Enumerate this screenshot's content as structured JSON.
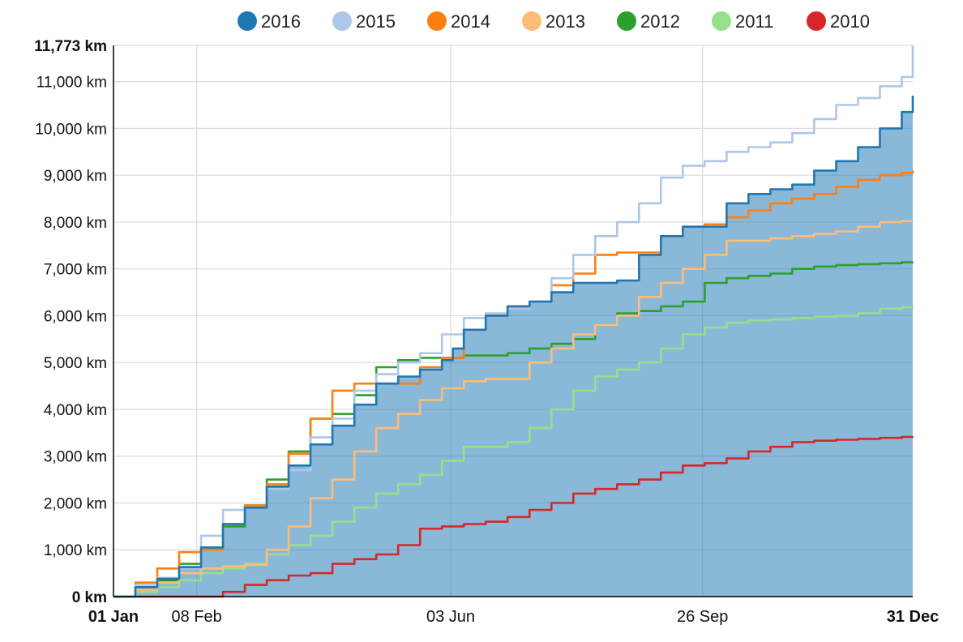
{
  "chart_data": {
    "type": "area",
    "title": "",
    "xlabel": "",
    "ylabel": "",
    "unit": "km",
    "x_ticks": [
      {
        "day": 0,
        "label": "01 Jan",
        "bold": true
      },
      {
        "day": 38,
        "label": "08 Feb",
        "bold": false
      },
      {
        "day": 154,
        "label": "03 Jun",
        "bold": false
      },
      {
        "day": 269,
        "label": "26 Sep",
        "bold": false
      },
      {
        "day": 365,
        "label": "31 Dec",
        "bold": true
      }
    ],
    "y_ticks": [
      {
        "value": 0,
        "label": "0 km",
        "bold": true
      },
      {
        "value": 1000,
        "label": "1,000 km",
        "bold": false
      },
      {
        "value": 2000,
        "label": "2,000 km",
        "bold": false
      },
      {
        "value": 3000,
        "label": "3,000 km",
        "bold": false
      },
      {
        "value": 4000,
        "label": "4,000 km",
        "bold": false
      },
      {
        "value": 5000,
        "label": "5,000 km",
        "bold": false
      },
      {
        "value": 6000,
        "label": "6,000 km",
        "bold": false
      },
      {
        "value": 7000,
        "label": "7,000 km",
        "bold": false
      },
      {
        "value": 8000,
        "label": "8,000 km",
        "bold": false
      },
      {
        "value": 9000,
        "label": "9,000 km",
        "bold": false
      },
      {
        "value": 10000,
        "label": "10,000 km",
        "bold": false
      },
      {
        "value": 11000,
        "label": "11,000 km",
        "bold": false
      },
      {
        "value": 11773,
        "label": "11,773 km",
        "bold": true
      }
    ],
    "xlim": [
      0,
      365
    ],
    "ylim": [
      0,
      11773
    ],
    "grid": true,
    "legend_position": "top",
    "series": [
      {
        "name": "2016",
        "color": "#1f77b4",
        "filled": true,
        "points": [
          [
            0,
            0
          ],
          [
            10,
            200
          ],
          [
            20,
            380
          ],
          [
            30,
            630
          ],
          [
            40,
            1050
          ],
          [
            50,
            1550
          ],
          [
            60,
            1900
          ],
          [
            70,
            2350
          ],
          [
            80,
            2800
          ],
          [
            90,
            3250
          ],
          [
            100,
            3650
          ],
          [
            110,
            4100
          ],
          [
            120,
            4550
          ],
          [
            130,
            4700
          ],
          [
            140,
            4850
          ],
          [
            150,
            5050
          ],
          [
            155,
            5300
          ],
          [
            160,
            5700
          ],
          [
            170,
            6000
          ],
          [
            180,
            6200
          ],
          [
            190,
            6300
          ],
          [
            200,
            6500
          ],
          [
            210,
            6700
          ],
          [
            230,
            6750
          ],
          [
            240,
            7300
          ],
          [
            250,
            7700
          ],
          [
            260,
            7900
          ],
          [
            270,
            7900
          ],
          [
            280,
            8400
          ],
          [
            290,
            8600
          ],
          [
            300,
            8700
          ],
          [
            310,
            8800
          ],
          [
            320,
            9100
          ],
          [
            330,
            9300
          ],
          [
            340,
            9600
          ],
          [
            350,
            10000
          ],
          [
            360,
            10350
          ],
          [
            365,
            10700
          ]
        ]
      },
      {
        "name": "2015",
        "color": "#aec7e8",
        "filled": false,
        "points": [
          [
            0,
            0
          ],
          [
            10,
            250
          ],
          [
            20,
            400
          ],
          [
            30,
            600
          ],
          [
            40,
            1300
          ],
          [
            50,
            1850
          ],
          [
            60,
            1900
          ],
          [
            70,
            2300
          ],
          [
            80,
            2700
          ],
          [
            90,
            3400
          ],
          [
            100,
            3800
          ],
          [
            110,
            4400
          ],
          [
            120,
            4750
          ],
          [
            130,
            5000
          ],
          [
            140,
            5200
          ],
          [
            150,
            5600
          ],
          [
            160,
            5950
          ],
          [
            170,
            6050
          ],
          [
            180,
            6150
          ],
          [
            190,
            6300
          ],
          [
            200,
            6800
          ],
          [
            210,
            7300
          ],
          [
            220,
            7700
          ],
          [
            230,
            8000
          ],
          [
            240,
            8400
          ],
          [
            250,
            8950
          ],
          [
            260,
            9200
          ],
          [
            270,
            9300
          ],
          [
            280,
            9500
          ],
          [
            290,
            9600
          ],
          [
            300,
            9700
          ],
          [
            310,
            9900
          ],
          [
            320,
            10200
          ],
          [
            330,
            10500
          ],
          [
            340,
            10650
          ],
          [
            350,
            10900
          ],
          [
            360,
            11100
          ],
          [
            365,
            11773
          ]
        ]
      },
      {
        "name": "2014",
        "color": "#ff7f0e",
        "filled": false,
        "points": [
          [
            0,
            0
          ],
          [
            10,
            300
          ],
          [
            20,
            600
          ],
          [
            30,
            950
          ],
          [
            40,
            1000
          ],
          [
            50,
            1550
          ],
          [
            60,
            1950
          ],
          [
            70,
            2400
          ],
          [
            80,
            3050
          ],
          [
            90,
            3800
          ],
          [
            100,
            4400
          ],
          [
            110,
            4550
          ],
          [
            120,
            4550
          ],
          [
            130,
            4550
          ],
          [
            140,
            4900
          ],
          [
            150,
            5100
          ],
          [
            160,
            5700
          ],
          [
            170,
            6000
          ],
          [
            180,
            6200
          ],
          [
            190,
            6300
          ],
          [
            200,
            6650
          ],
          [
            210,
            6900
          ],
          [
            220,
            7300
          ],
          [
            230,
            7350
          ],
          [
            240,
            7350
          ],
          [
            250,
            7700
          ],
          [
            260,
            7900
          ],
          [
            270,
            7950
          ],
          [
            280,
            8100
          ],
          [
            290,
            8250
          ],
          [
            300,
            8400
          ],
          [
            310,
            8500
          ],
          [
            320,
            8600
          ],
          [
            330,
            8750
          ],
          [
            340,
            8900
          ],
          [
            350,
            9000
          ],
          [
            360,
            9050
          ],
          [
            365,
            9100
          ]
        ]
      },
      {
        "name": "2013",
        "color": "#ffbb78",
        "filled": false,
        "points": [
          [
            0,
            0
          ],
          [
            10,
            150
          ],
          [
            20,
            300
          ],
          [
            30,
            500
          ],
          [
            40,
            600
          ],
          [
            50,
            650
          ],
          [
            60,
            680
          ],
          [
            70,
            1000
          ],
          [
            80,
            1500
          ],
          [
            90,
            2100
          ],
          [
            100,
            2500
          ],
          [
            110,
            3100
          ],
          [
            120,
            3600
          ],
          [
            130,
            3900
          ],
          [
            140,
            4200
          ],
          [
            150,
            4450
          ],
          [
            160,
            4600
          ],
          [
            170,
            4650
          ],
          [
            180,
            4650
          ],
          [
            190,
            5000
          ],
          [
            200,
            5300
          ],
          [
            210,
            5600
          ],
          [
            220,
            5800
          ],
          [
            230,
            6000
          ],
          [
            240,
            6400
          ],
          [
            250,
            6700
          ],
          [
            260,
            7000
          ],
          [
            270,
            7300
          ],
          [
            280,
            7600
          ],
          [
            290,
            7600
          ],
          [
            300,
            7650
          ],
          [
            310,
            7700
          ],
          [
            320,
            7750
          ],
          [
            330,
            7800
          ],
          [
            340,
            7900
          ],
          [
            350,
            8000
          ],
          [
            360,
            8020
          ],
          [
            365,
            8030
          ]
        ]
      },
      {
        "name": "2012",
        "color": "#2ca02c",
        "filled": false,
        "points": [
          [
            0,
            0
          ],
          [
            10,
            200
          ],
          [
            20,
            350
          ],
          [
            30,
            700
          ],
          [
            40,
            1050
          ],
          [
            50,
            1500
          ],
          [
            60,
            1950
          ],
          [
            70,
            2500
          ],
          [
            80,
            3100
          ],
          [
            90,
            3800
          ],
          [
            100,
            3900
          ],
          [
            110,
            4300
          ],
          [
            120,
            4900
          ],
          [
            130,
            5050
          ],
          [
            140,
            5100
          ],
          [
            150,
            5100
          ],
          [
            160,
            5150
          ],
          [
            170,
            5150
          ],
          [
            180,
            5200
          ],
          [
            190,
            5300
          ],
          [
            200,
            5400
          ],
          [
            210,
            5500
          ],
          [
            220,
            5800
          ],
          [
            230,
            6050
          ],
          [
            240,
            6100
          ],
          [
            250,
            6200
          ],
          [
            260,
            6300
          ],
          [
            270,
            6700
          ],
          [
            280,
            6800
          ],
          [
            290,
            6850
          ],
          [
            300,
            6900
          ],
          [
            310,
            7000
          ],
          [
            320,
            7050
          ],
          [
            330,
            7080
          ],
          [
            340,
            7100
          ],
          [
            350,
            7120
          ],
          [
            360,
            7140
          ],
          [
            365,
            7150
          ]
        ]
      },
      {
        "name": "2011",
        "color": "#98df8a",
        "filled": false,
        "points": [
          [
            0,
            0
          ],
          [
            10,
            100
          ],
          [
            20,
            200
          ],
          [
            30,
            350
          ],
          [
            40,
            500
          ],
          [
            50,
            600
          ],
          [
            60,
            700
          ],
          [
            70,
            900
          ],
          [
            80,
            1100
          ],
          [
            90,
            1300
          ],
          [
            100,
            1600
          ],
          [
            110,
            1900
          ],
          [
            120,
            2200
          ],
          [
            130,
            2400
          ],
          [
            140,
            2600
          ],
          [
            150,
            2900
          ],
          [
            160,
            3200
          ],
          [
            170,
            3200
          ],
          [
            180,
            3300
          ],
          [
            190,
            3600
          ],
          [
            200,
            4000
          ],
          [
            210,
            4400
          ],
          [
            220,
            4700
          ],
          [
            230,
            4850
          ],
          [
            240,
            5000
          ],
          [
            250,
            5300
          ],
          [
            260,
            5600
          ],
          [
            270,
            5750
          ],
          [
            280,
            5850
          ],
          [
            290,
            5900
          ],
          [
            300,
            5920
          ],
          [
            310,
            5950
          ],
          [
            320,
            5980
          ],
          [
            330,
            6000
          ],
          [
            340,
            6050
          ],
          [
            350,
            6150
          ],
          [
            360,
            6180
          ],
          [
            365,
            6200
          ]
        ]
      },
      {
        "name": "2010",
        "color": "#d62728",
        "filled": false,
        "points": [
          [
            0,
            0
          ],
          [
            40,
            0
          ],
          [
            50,
            100
          ],
          [
            60,
            250
          ],
          [
            70,
            350
          ],
          [
            80,
            450
          ],
          [
            90,
            500
          ],
          [
            100,
            700
          ],
          [
            110,
            800
          ],
          [
            120,
            900
          ],
          [
            130,
            1100
          ],
          [
            140,
            1450
          ],
          [
            150,
            1500
          ],
          [
            160,
            1550
          ],
          [
            170,
            1600
          ],
          [
            180,
            1700
          ],
          [
            190,
            1850
          ],
          [
            200,
            2000
          ],
          [
            210,
            2200
          ],
          [
            220,
            2300
          ],
          [
            230,
            2400
          ],
          [
            240,
            2500
          ],
          [
            250,
            2650
          ],
          [
            260,
            2800
          ],
          [
            270,
            2850
          ],
          [
            280,
            2950
          ],
          [
            290,
            3100
          ],
          [
            300,
            3200
          ],
          [
            310,
            3300
          ],
          [
            320,
            3330
          ],
          [
            330,
            3350
          ],
          [
            340,
            3370
          ],
          [
            350,
            3390
          ],
          [
            360,
            3410
          ],
          [
            365,
            3420
          ]
        ]
      }
    ]
  }
}
